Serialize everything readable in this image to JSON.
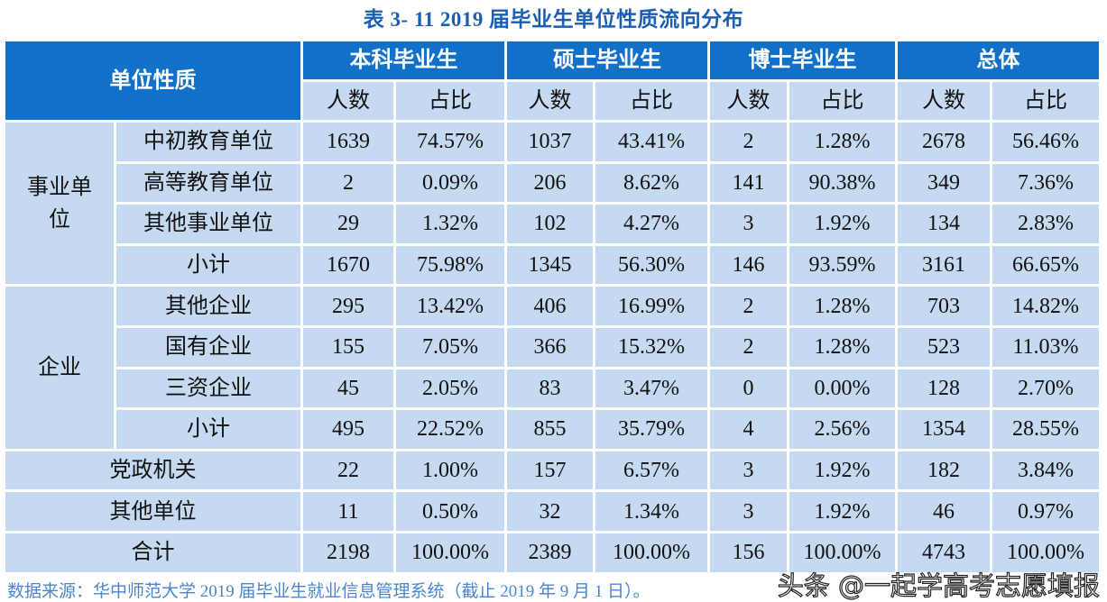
{
  "title": "表 3- 11    2019 届毕业生单位性质流向分布",
  "header": {
    "category": "单位性质",
    "groups": [
      "本科毕业生",
      "硕士毕业生",
      "博士毕业生",
      "总体"
    ],
    "sub": [
      "人数",
      "占比"
    ]
  },
  "groups": [
    {
      "name": "事业单位",
      "rows": [
        {
          "label": "中初教育单位",
          "values": [
            "1639",
            "74.57%",
            "1037",
            "43.41%",
            "2",
            "1.28%",
            "2678",
            "56.46%"
          ]
        },
        {
          "label": "高等教育单位",
          "values": [
            "2",
            "0.09%",
            "206",
            "8.62%",
            "141",
            "90.38%",
            "349",
            "7.36%"
          ]
        },
        {
          "label": "其他事业单位",
          "values": [
            "29",
            "1.32%",
            "102",
            "4.27%",
            "3",
            "1.92%",
            "134",
            "2.83%"
          ]
        },
        {
          "label": "小计",
          "values": [
            "1670",
            "75.98%",
            "1345",
            "56.30%",
            "146",
            "93.59%",
            "3161",
            "66.65%"
          ]
        }
      ]
    },
    {
      "name": "企业",
      "rows": [
        {
          "label": "其他企业",
          "values": [
            "295",
            "13.42%",
            "406",
            "16.99%",
            "2",
            "1.28%",
            "703",
            "14.82%"
          ]
        },
        {
          "label": "国有企业",
          "values": [
            "155",
            "7.05%",
            "366",
            "15.32%",
            "2",
            "1.28%",
            "523",
            "11.03%"
          ]
        },
        {
          "label": "三资企业",
          "values": [
            "45",
            "2.05%",
            "83",
            "3.47%",
            "0",
            "0.00%",
            "128",
            "2.70%"
          ]
        },
        {
          "label": "小计",
          "values": [
            "495",
            "22.52%",
            "855",
            "35.79%",
            "4",
            "2.56%",
            "1354",
            "28.55%"
          ]
        }
      ]
    }
  ],
  "single_rows": [
    {
      "label": "党政机关",
      "values": [
        "22",
        "1.00%",
        "157",
        "6.57%",
        "3",
        "1.92%",
        "182",
        "3.84%"
      ]
    },
    {
      "label": "其他单位",
      "values": [
        "11",
        "0.50%",
        "32",
        "1.34%",
        "3",
        "1.92%",
        "46",
        "0.97%"
      ]
    },
    {
      "label": "合计",
      "values": [
        "2198",
        "100.00%",
        "2389",
        "100.00%",
        "156",
        "100.00%",
        "4743",
        "100.00%"
      ]
    }
  ],
  "source": "数据来源：华中师范大学 2019 届毕业生就业信息管理系统（截止 2019 年 9 月 1 日）。",
  "watermark": "头条 @一起学高考志愿填报",
  "colors": {
    "header": "#1170c8",
    "cell": "#c5d9f1",
    "title": "#1a5fb4"
  }
}
